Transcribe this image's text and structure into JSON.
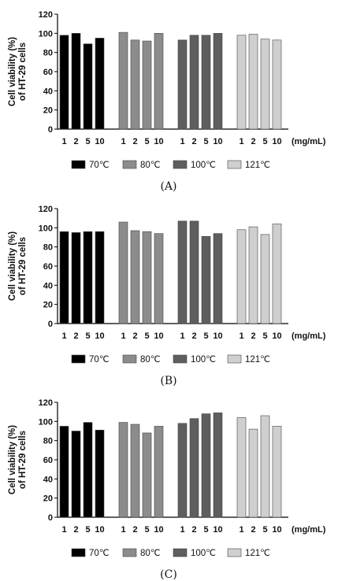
{
  "chart_data": [
    {
      "type": "bar",
      "panel_label": "(A)",
      "ylabel_line1": "Cell viability (%)",
      "ylabel_line2": "of HT-29 cells",
      "unit": "(mg/mL)",
      "ylim": [
        0,
        120
      ],
      "yticks": [
        0,
        20,
        40,
        60,
        80,
        100,
        120
      ],
      "categories": [
        "1",
        "2",
        "5",
        "10"
      ],
      "legend_placement": "bottom",
      "series": [
        {
          "name": "70℃",
          "color": "#000000",
          "values": [
            98,
            100,
            89,
            95
          ]
        },
        {
          "name": "80℃",
          "color": "#8c8c8c",
          "values": [
            101,
            93,
            92,
            100
          ]
        },
        {
          "name": "100℃",
          "color": "#5e5e5e",
          "values": [
            93,
            98,
            98,
            100
          ]
        },
        {
          "name": "121℃",
          "color": "#cfcfcf",
          "values": [
            98,
            99,
            94,
            93
          ]
        }
      ]
    },
    {
      "type": "bar",
      "panel_label": "(B)",
      "ylabel_line1": "Cell viability (%)",
      "ylabel_line2": "of HT-29 cells",
      "unit": "(mg/mL)",
      "ylim": [
        0,
        120
      ],
      "yticks": [
        0,
        20,
        40,
        60,
        80,
        100,
        120
      ],
      "categories": [
        "1",
        "2",
        "5",
        "10"
      ],
      "legend_placement": "bottom",
      "series": [
        {
          "name": "70℃",
          "color": "#000000",
          "values": [
            96,
            95,
            96,
            96
          ]
        },
        {
          "name": "80℃",
          "color": "#8c8c8c",
          "values": [
            106,
            97,
            96,
            94
          ]
        },
        {
          "name": "100℃",
          "color": "#5e5e5e",
          "values": [
            107,
            107,
            91,
            94
          ]
        },
        {
          "name": "121℃",
          "color": "#cfcfcf",
          "values": [
            98,
            101,
            93,
            104
          ]
        }
      ]
    },
    {
      "type": "bar",
      "panel_label": "(C)",
      "ylabel_line1": "Cell viability (%)",
      "ylabel_line2": "of HT-29 cells",
      "unit": "(mg/mL)",
      "ylim": [
        0,
        120
      ],
      "yticks": [
        0,
        20,
        40,
        60,
        80,
        100,
        120
      ],
      "categories": [
        "1",
        "2",
        "5",
        "10"
      ],
      "legend_placement": "bottom",
      "series": [
        {
          "name": "70℃",
          "color": "#000000",
          "values": [
            95,
            90,
            99,
            91
          ]
        },
        {
          "name": "80℃",
          "color": "#8c8c8c",
          "values": [
            99,
            97,
            88,
            95
          ]
        },
        {
          "name": "100℃",
          "color": "#5e5e5e",
          "values": [
            98,
            103,
            108,
            109
          ]
        },
        {
          "name": "121℃",
          "color": "#cfcfcf",
          "values": [
            104,
            92,
            106,
            95
          ]
        }
      ]
    }
  ]
}
